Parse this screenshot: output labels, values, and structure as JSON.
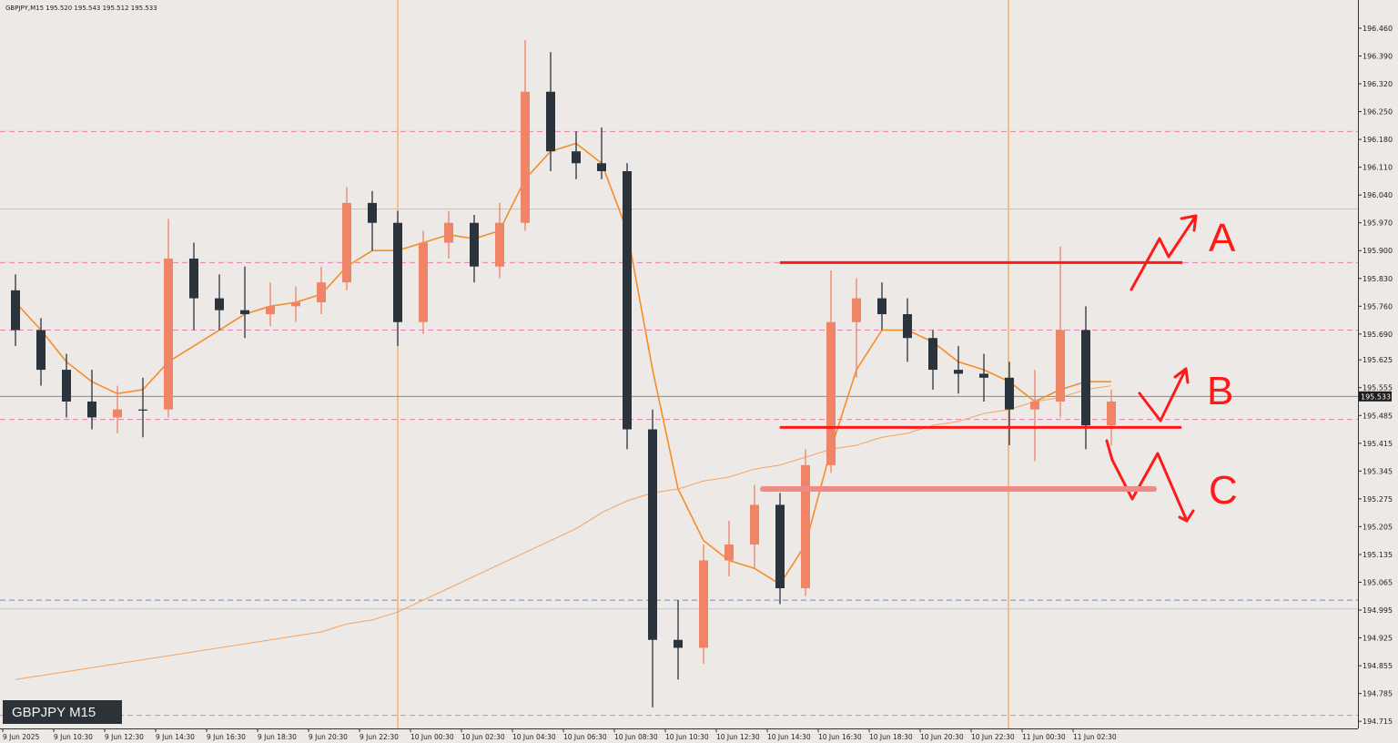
{
  "chart_data": {
    "type": "candlestick",
    "title": "GBPJPY,M15  195.520 195.543 195.512 195.533",
    "symbol_label": "GBPJPY M15",
    "price_tag": {
      "value": 195.533,
      "label": "195.533"
    },
    "categories": [
      "9 Jun 2025",
      "9 Jun 10:30",
      "9 Jun 12:30",
      "9 Jun 14:30",
      "9 Jun 16:30",
      "9 Jun 18:30",
      "9 Jun 20:30",
      "9 Jun 22:30",
      "10 Jun 00:30",
      "10 Jun 02:30",
      "10 Jun 04:30",
      "10 Jun 06:30",
      "10 Jun 08:30",
      "10 Jun 10:30",
      "10 Jun 12:30",
      "10 Jun 14:30",
      "10 Jun 16:30",
      "10 Jun 18:30",
      "10 Jun 20:30",
      "10 Jun 22:30",
      "11 Jun 00:30",
      "11 Jun 02:30"
    ],
    "ylim": [
      194.697,
      196.531
    ],
    "yticks": [
      {
        "value": 196.46,
        "label": "196.460"
      },
      {
        "value": 196.39,
        "label": "196.390"
      },
      {
        "value": 196.32,
        "label": "196.320"
      },
      {
        "value": 196.25,
        "label": "196.250"
      },
      {
        "value": 196.18,
        "label": "196.180"
      },
      {
        "value": 196.11,
        "label": "196.110"
      },
      {
        "value": 196.04,
        "label": "196.040"
      },
      {
        "value": 195.97,
        "label": "195.970"
      },
      {
        "value": 195.9,
        "label": "195.900"
      },
      {
        "value": 195.83,
        "label": "195.830"
      },
      {
        "value": 195.76,
        "label": "195.760"
      },
      {
        "value": 195.69,
        "label": "195.690"
      },
      195.625,
      195.555,
      195.485,
      195.415,
      195.345,
      195.275,
      195.205,
      195.135,
      195.065,
      194.995,
      194.925,
      194.855,
      194.785,
      194.715
    ],
    "up_color": "#f08466",
    "down_color": "#2b333d",
    "ohlc": [
      [
        195.8,
        195.84,
        195.66,
        195.7
      ],
      [
        195.7,
        195.73,
        195.56,
        195.6
      ],
      [
        195.6,
        195.64,
        195.48,
        195.52
      ],
      [
        195.52,
        195.6,
        195.45,
        195.48
      ],
      [
        195.48,
        195.56,
        195.44,
        195.5
      ],
      [
        195.5,
        195.58,
        195.43,
        195.5
      ],
      [
        195.5,
        195.98,
        195.48,
        195.88
      ],
      [
        195.88,
        195.92,
        195.7,
        195.78
      ],
      [
        195.78,
        195.84,
        195.7,
        195.75
      ],
      [
        195.75,
        195.86,
        195.68,
        195.74
      ],
      [
        195.74,
        195.82,
        195.71,
        195.76
      ],
      [
        195.76,
        195.81,
        195.72,
        195.77
      ],
      [
        195.77,
        195.86,
        195.74,
        195.82
      ],
      [
        195.82,
        196.06,
        195.8,
        196.02
      ],
      [
        196.02,
        196.05,
        195.9,
        195.97
      ],
      [
        195.97,
        196.0,
        195.66,
        195.72
      ],
      [
        195.72,
        195.95,
        195.69,
        195.92
      ],
      [
        195.92,
        196.0,
        195.88,
        195.97
      ],
      [
        195.97,
        195.99,
        195.82,
        195.86
      ],
      [
        195.86,
        196.02,
        195.83,
        195.97
      ],
      [
        195.97,
        196.43,
        195.95,
        196.3
      ],
      [
        196.3,
        196.4,
        196.1,
        196.15
      ],
      [
        196.15,
        196.2,
        196.08,
        196.12
      ],
      [
        196.12,
        196.21,
        196.08,
        196.1
      ],
      [
        196.1,
        196.12,
        195.4,
        195.45
      ],
      [
        195.45,
        195.5,
        194.75,
        194.92
      ],
      [
        194.92,
        195.02,
        194.82,
        194.9
      ],
      [
        194.9,
        195.16,
        194.86,
        195.12
      ],
      [
        195.12,
        195.22,
        195.08,
        195.16
      ],
      [
        195.16,
        195.31,
        195.1,
        195.26
      ],
      [
        195.26,
        195.29,
        195.01,
        195.05
      ],
      [
        195.05,
        195.4,
        195.03,
        195.36
      ],
      [
        195.36,
        195.85,
        195.34,
        195.72
      ],
      [
        195.72,
        195.83,
        195.58,
        195.78
      ],
      [
        195.78,
        195.82,
        195.7,
        195.74
      ],
      [
        195.74,
        195.78,
        195.62,
        195.68
      ],
      [
        195.68,
        195.7,
        195.55,
        195.6
      ],
      [
        195.6,
        195.66,
        195.54,
        195.59
      ],
      [
        195.59,
        195.64,
        195.52,
        195.58
      ],
      [
        195.58,
        195.62,
        195.41,
        195.5
      ],
      [
        195.5,
        195.6,
        195.37,
        195.52
      ],
      [
        195.52,
        195.91,
        195.48,
        195.7
      ],
      [
        195.7,
        195.76,
        195.4,
        195.46
      ],
      [
        195.46,
        195.55,
        195.41,
        195.52
      ]
    ],
    "overlays": [
      {
        "color": "#f58d2a",
        "width": 1.6,
        "values": [
          195.77,
          195.7,
          195.62,
          195.57,
          195.54,
          195.55,
          195.62,
          195.66,
          195.7,
          195.74,
          195.76,
          195.77,
          195.79,
          195.86,
          195.9,
          195.9,
          195.92,
          195.94,
          195.93,
          195.95,
          196.08,
          196.15,
          196.17,
          196.12,
          195.95,
          195.6,
          195.3,
          195.17,
          195.12,
          195.1,
          195.06,
          195.16,
          195.4,
          195.6,
          195.7,
          195.7,
          195.67,
          195.62,
          195.6,
          195.57,
          195.52,
          195.55,
          195.57,
          195.57
        ]
      },
      {
        "color": "#f4a460",
        "width": 1,
        "values": [
          194.82,
          194.83,
          194.84,
          194.85,
          194.86,
          194.87,
          194.88,
          194.89,
          194.9,
          194.91,
          194.92,
          194.93,
          194.94,
          194.96,
          194.97,
          194.99,
          195.02,
          195.05,
          195.08,
          195.11,
          195.14,
          195.17,
          195.2,
          195.24,
          195.27,
          195.29,
          195.3,
          195.32,
          195.33,
          195.35,
          195.36,
          195.38,
          195.4,
          195.41,
          195.43,
          195.44,
          195.46,
          195.47,
          195.49,
          195.5,
          195.52,
          195.53,
          195.55,
          195.56
        ]
      }
    ],
    "levels": [
      {
        "value": 196.2,
        "color": "#e77fb0",
        "style": "dashed"
      },
      {
        "value": 195.87,
        "color": "#e77fb0",
        "style": "dashed"
      },
      {
        "value": 195.7,
        "color": "#e77fb0",
        "style": "dashed"
      },
      {
        "value": 195.475,
        "color": "#e77fb0",
        "style": "dashed"
      },
      {
        "value": 194.73,
        "color": "#e77fb0",
        "style": "dashed"
      },
      {
        "value": 195.02,
        "color": "#6d8fc7",
        "style": "dashed"
      },
      {
        "value": 196.005,
        "color": "#c4c4c4",
        "style": "solid"
      },
      {
        "value": 194.998,
        "color": "#c4c4c4",
        "style": "solid"
      }
    ],
    "spans": [
      {
        "value": 195.87,
        "color": "#ff1a1a",
        "width": 3
      },
      {
        "value": 195.455,
        "color": "#ff1a1a",
        "width": 3
      },
      {
        "value": 195.3,
        "color": "#f08a86",
        "width": 6
      }
    ],
    "annotations": [
      {
        "text": "A"
      },
      {
        "text": "B"
      },
      {
        "text": "C"
      }
    ]
  }
}
